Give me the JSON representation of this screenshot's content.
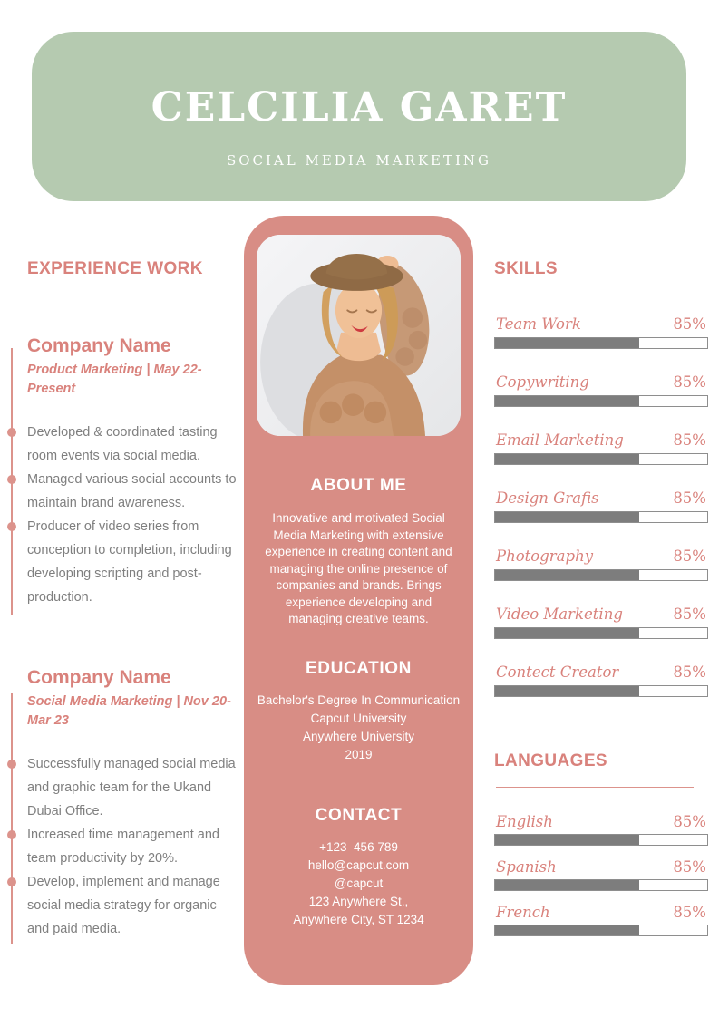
{
  "header": {
    "name": "CELCILIA GARET",
    "role": "SOCIAL MEDIA MARKETING"
  },
  "experience": {
    "title": "EXPERIENCE WORK",
    "jobs": [
      {
        "company": "Company Name",
        "meta": "Product Marketing | May 22-Present",
        "bullets": [
          "Developed & coordinated tasting room events via social media.",
          "Managed various social accounts to maintain brand awareness.",
          "Producer of video series from conception to completion, including developing scripting and post-production."
        ]
      },
      {
        "company": "Company Name",
        "meta": "Social Media Marketing | Nov 20-Mar 23",
        "bullets": [
          "Successfully managed social media and graphic team for the Ukand Dubai Office.",
          "Increased time management and team productivity by 20%.",
          "Develop, implement and manage social media strategy for organic and paid media."
        ]
      }
    ]
  },
  "profile": {
    "photo": "portrait-of-woman-in-brown-hat-and-knit-cardigan",
    "about": {
      "title": "ABOUT ME",
      "text": "Innovative and motivated Social Media Marketing with extensive experience in creating content and managing the online presence of companies and brands. Brings experience developing and managing creative teams."
    },
    "education": {
      "title": "EDUCATION",
      "lines": [
        "Bachelor's Degree In Communication",
        "Capcut University",
        "Anywhere University",
        "2019"
      ]
    },
    "contact": {
      "title": "CONTACT",
      "lines": [
        "+123  456 789",
        "hello@capcut.com",
        "@capcut",
        "123 Anywhere St.,",
        "Anywhere City, ST 1234"
      ]
    }
  },
  "skills": {
    "title": "SKILLS",
    "items": [
      {
        "label": "Team Work",
        "value": "85%",
        "fill": 68
      },
      {
        "label": "Copywriting",
        "value": "85%",
        "fill": 68
      },
      {
        "label": "Email Marketing",
        "value": "85%",
        "fill": 68
      },
      {
        "label": "Design Grafis",
        "value": "85%",
        "fill": 68
      },
      {
        "label": "Photography",
        "value": "85%",
        "fill": 68
      },
      {
        "label": "Video Marketing",
        "value": "85%",
        "fill": 68
      },
      {
        "label": "Contect Creator",
        "value": "85%",
        "fill": 68
      }
    ]
  },
  "languages": {
    "title": "LANGUAGES",
    "items": [
      {
        "label": "English",
        "value": "85%",
        "fill": 68
      },
      {
        "label": "Spanish",
        "value": "85%",
        "fill": 68
      },
      {
        "label": "French",
        "value": "85%",
        "fill": 68
      }
    ]
  },
  "colors": {
    "header_green": "#b5cab0",
    "column_pink": "#d88d85",
    "accent_text": "#d9827c",
    "body_gray": "#7f7f7f",
    "bar_fill": "#7d7d7d"
  }
}
